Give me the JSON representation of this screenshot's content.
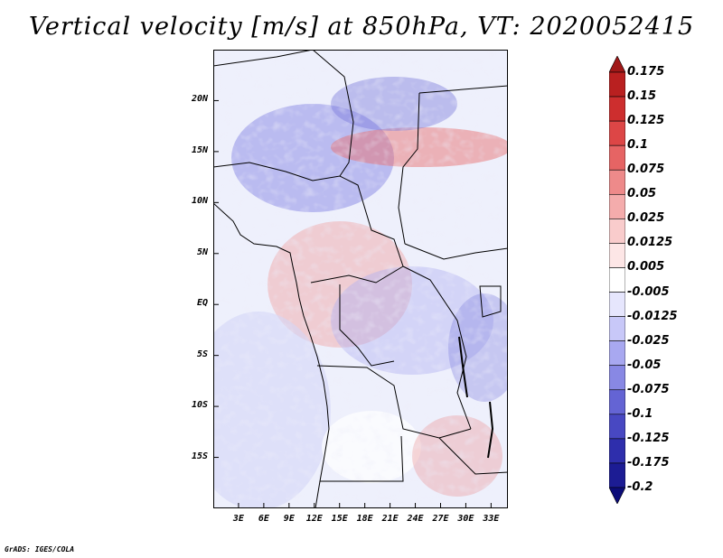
{
  "title": "Vertical velocity [m/s] at 850hPa, VT: 2020052415",
  "credit": "GrADS: IGES/COLA",
  "map": {
    "lon_range": [
      0,
      35
    ],
    "lat_range": [
      -20,
      25
    ],
    "lat_labels": [
      {
        "value": 20,
        "text": "20N"
      },
      {
        "value": 15,
        "text": "15N"
      },
      {
        "value": 10,
        "text": "10N"
      },
      {
        "value": 5,
        "text": "5N"
      },
      {
        "value": 0,
        "text": "EQ"
      },
      {
        "value": -5,
        "text": "5S"
      },
      {
        "value": -10,
        "text": "10S"
      },
      {
        "value": -15,
        "text": "15S"
      }
    ],
    "lon_labels": [
      {
        "value": 3,
        "text": "3E"
      },
      {
        "value": 6,
        "text": "6E"
      },
      {
        "value": 9,
        "text": "9E"
      },
      {
        "value": 12,
        "text": "12E"
      },
      {
        "value": 15,
        "text": "15E"
      },
      {
        "value": 18,
        "text": "18E"
      },
      {
        "value": 21,
        "text": "21E"
      },
      {
        "value": 24,
        "text": "24E"
      },
      {
        "value": 27,
        "text": "27E"
      },
      {
        "value": 30,
        "text": "30E"
      },
      {
        "value": 33,
        "text": "33E"
      }
    ]
  },
  "colorbar": {
    "labels": [
      "0.175",
      "0.15",
      "0.125",
      "0.1",
      "0.075",
      "0.05",
      "0.025",
      "0.0125",
      "0.005",
      "-0.005",
      "-0.0125",
      "-0.025",
      "-0.05",
      "-0.075",
      "-0.1",
      "-0.125",
      "-0.175",
      "-0.2"
    ],
    "colors": [
      "#a01818",
      "#b92020",
      "#cd2e2e",
      "#dd4646",
      "#e66464",
      "#ee8a8a",
      "#f4acac",
      "#f9cccc",
      "#fde6e6",
      "#ffffff",
      "#e6e6fd",
      "#c8c8f8",
      "#a8a8f0",
      "#8888e4",
      "#6464d4",
      "#4848c2",
      "#2e2eac",
      "#1c1c94",
      "#0c0c78"
    ]
  },
  "chart_data": {
    "type": "heatmap",
    "title": "Vertical velocity [m/s] at 850hPa, VT: 2020052415",
    "variable": "Vertical velocity",
    "units": "m/s",
    "level": "850hPa",
    "valid_time": "2020052415",
    "x_ticks": [
      "3E",
      "6E",
      "9E",
      "12E",
      "15E",
      "18E",
      "21E",
      "24E",
      "27E",
      "30E",
      "33E"
    ],
    "y_ticks": [
      "20N",
      "15N",
      "10N",
      "5N",
      "EQ",
      "5S",
      "10S",
      "15S"
    ],
    "contour_levels": [
      0.175,
      0.15,
      0.125,
      0.1,
      0.075,
      0.05,
      0.025,
      0.0125,
      0.005,
      -0.005,
      -0.0125,
      -0.025,
      -0.05,
      -0.075,
      -0.1,
      -0.125,
      -0.175,
      -0.2
    ]
  }
}
